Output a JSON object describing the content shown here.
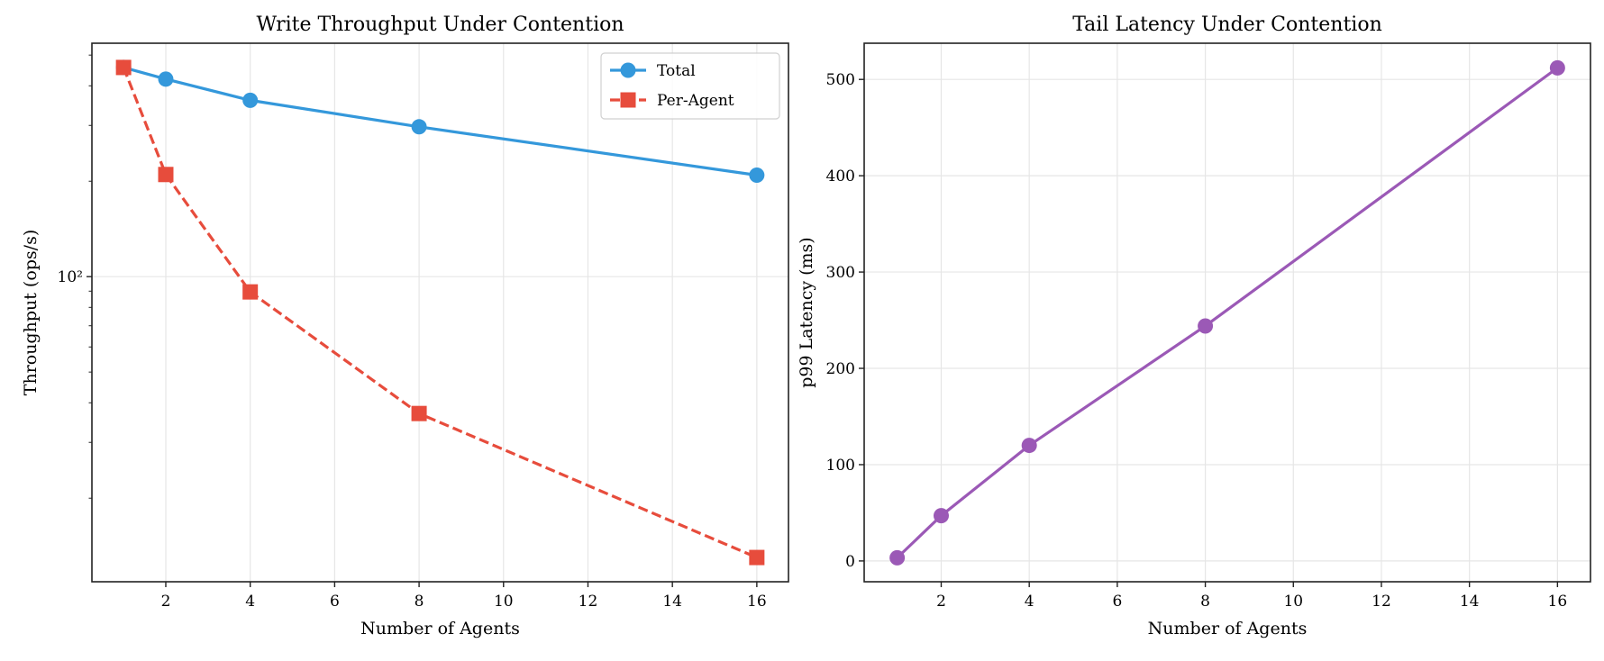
{
  "chart_data": [
    {
      "type": "line",
      "title": "Write Throughput Under Contention",
      "xlabel": "Number of Agents",
      "ylabel": "Throughput (ops/s)",
      "yscale": "log",
      "xlim": [
        0.25,
        16.75
      ],
      "ylim": [
        10.9,
        545
      ],
      "xticks": [
        2,
        4,
        6,
        8,
        10,
        12,
        14,
        16
      ],
      "yticks_major": [
        100
      ],
      "ytick_major_labels": [
        "10²"
      ],
      "yticks_minor": [
        20,
        30,
        40,
        50,
        60,
        70,
        80,
        90,
        200,
        300,
        400,
        500
      ],
      "grid": true,
      "legend": "top-right",
      "x": [
        1,
        2,
        4,
        8,
        16
      ],
      "series": [
        {
          "name": "Total",
          "values": [
            457,
            420,
            360,
            297,
            209
          ],
          "color": "#3498db",
          "marker": "circle",
          "linestyle": "solid"
        },
        {
          "name": "Per-Agent",
          "values": [
            457,
            210,
            89.5,
            37,
            13
          ],
          "color": "#e74c3c",
          "marker": "square",
          "linestyle": "dashed"
        }
      ]
    },
    {
      "type": "line",
      "title": "Tail Latency Under Contention",
      "xlabel": "Number of Agents",
      "ylabel": "p99 Latency (ms)",
      "yscale": "linear",
      "xlim": [
        0.25,
        16.75
      ],
      "ylim": [
        -21.6,
        537.6
      ],
      "xticks": [
        2,
        4,
        6,
        8,
        10,
        12,
        14,
        16
      ],
      "yticks_major": [
        0,
        100,
        200,
        300,
        400,
        500
      ],
      "ytick_major_labels": [
        "0",
        "100",
        "200",
        "300",
        "400",
        "500"
      ],
      "grid": true,
      "x": [
        1,
        2,
        4,
        8,
        16
      ],
      "series": [
        {
          "values": [
            3.3,
            47,
            120,
            244,
            512
          ],
          "color": "#9b59b6",
          "marker": "circle",
          "linestyle": "solid"
        }
      ]
    }
  ]
}
